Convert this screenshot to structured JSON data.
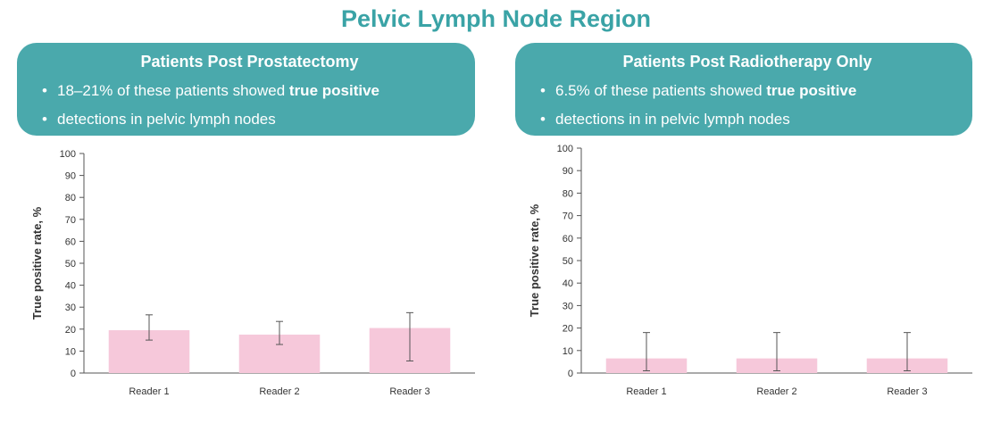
{
  "title": "Pelvic Lymph Node Region",
  "panels": [
    {
      "heading": "Patients Post Prostatectomy",
      "bullet_line1_pre": "18–21% of these patients showed ",
      "bullet_line1_bold": "true positive",
      "bullet_line2": "detections in pelvic lymph nodes"
    },
    {
      "heading": "Patients Post Radiotherapy Only",
      "bullet_line1_pre": "6.5% of these patients showed ",
      "bullet_line1_bold": "true positive",
      "bullet_line2": "detections in in pelvic lymph nodes"
    }
  ],
  "colors": {
    "teal": "#4aa9ac",
    "title_teal": "#3aa3a6",
    "bar": "#f6c8da",
    "axis": "#555555",
    "text": "#333333"
  },
  "chart_data": [
    {
      "type": "bar",
      "categories": [
        "Reader 1",
        "Reader 2",
        "Reader 3"
      ],
      "values": [
        19.5,
        17.5,
        20.5
      ],
      "error_low": [
        15,
        13,
        5.5
      ],
      "error_high": [
        26.5,
        23.5,
        27.5
      ],
      "ylabel": "True positive rate, %",
      "xlabel": "",
      "ylim": [
        0,
        100
      ],
      "yticks": [
        0,
        10,
        20,
        30,
        40,
        50,
        60,
        70,
        80,
        90,
        100
      ]
    },
    {
      "type": "bar",
      "categories": [
        "Reader 1",
        "Reader 2",
        "Reader 3"
      ],
      "values": [
        6.5,
        6.5,
        6.5
      ],
      "error_low": [
        1,
        1,
        1
      ],
      "error_high": [
        18,
        18,
        18
      ],
      "ylabel": "True positive rate, %",
      "xlabel": "",
      "ylim": [
        0,
        100
      ],
      "yticks": [
        0,
        10,
        20,
        30,
        40,
        50,
        60,
        70,
        80,
        90,
        100
      ]
    }
  ]
}
